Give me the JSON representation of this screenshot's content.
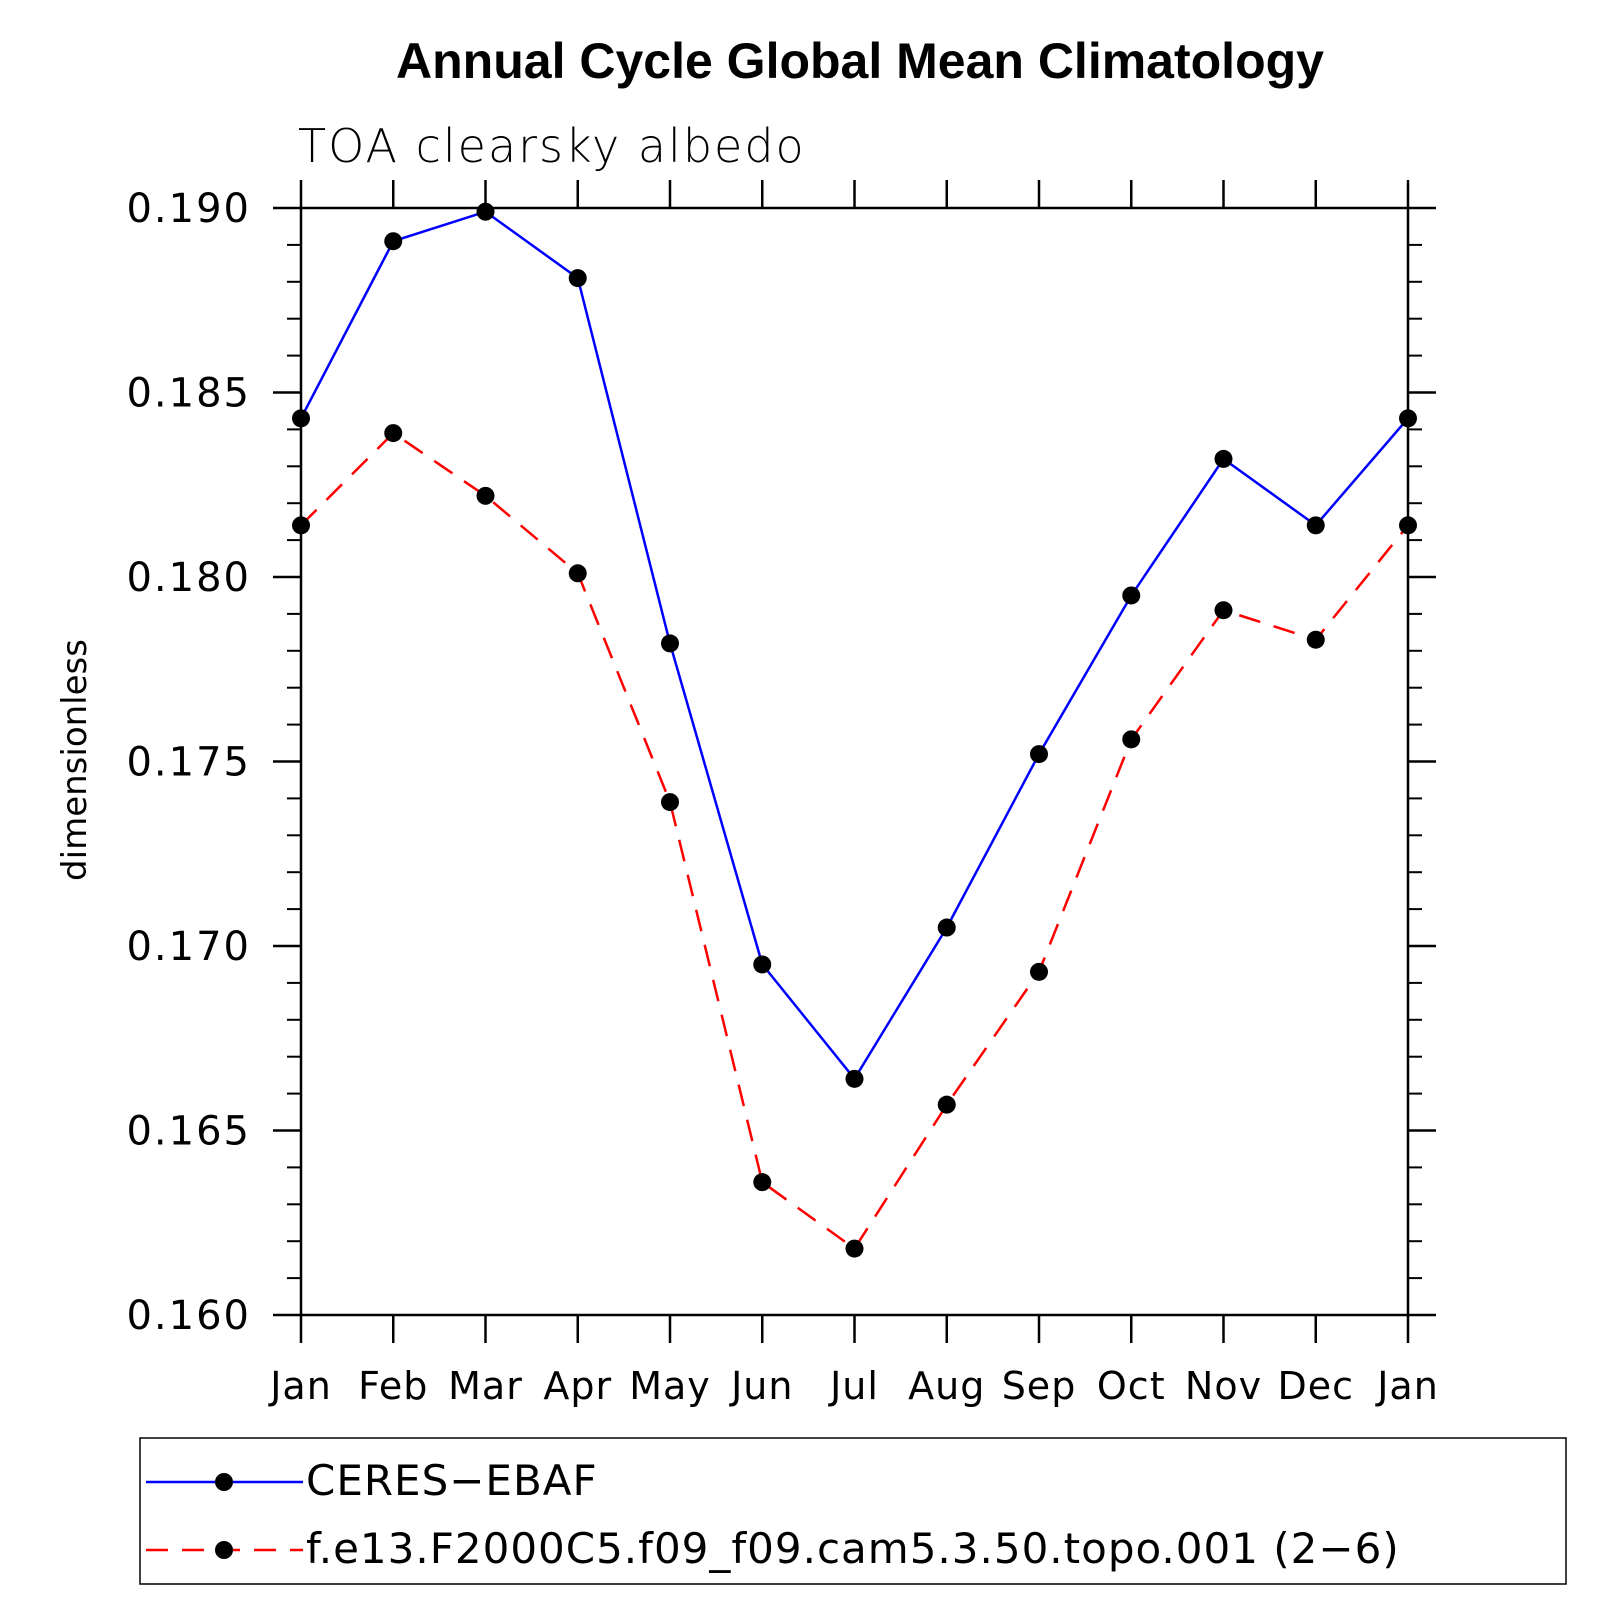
{
  "chart_data": {
    "type": "line",
    "title": "Annual Cycle Global Mean Climatology",
    "subtitle": "TOA clearsky albedo",
    "xlabel": "",
    "ylabel": "dimensionless",
    "categories": [
      "Jan",
      "Feb",
      "Mar",
      "Apr",
      "May",
      "Jun",
      "Jul",
      "Aug",
      "Sep",
      "Oct",
      "Nov",
      "Dec",
      "Jan"
    ],
    "ylim": [
      0.16,
      0.19
    ],
    "yticks": [
      "0.160",
      "0.165",
      "0.170",
      "0.175",
      "0.180",
      "0.185",
      "0.190"
    ],
    "grid": false,
    "legend_position": "bottom",
    "series": [
      {
        "name": "CERES−EBAF",
        "color": "#0000ff",
        "line_style": "solid",
        "marker": "filled-circle",
        "values": [
          0.1843,
          0.1891,
          0.1899,
          0.1881,
          0.1782,
          0.1695,
          0.1664,
          0.1705,
          0.1752,
          0.1795,
          0.1832,
          0.1814,
          0.1843
        ]
      },
      {
        "name": "f.e13.F2000C5.f09_f09.cam5.3.50.topo.001 (2−6)",
        "color": "#ff0000",
        "line_style": "dashed",
        "marker": "filled-circle",
        "values": [
          0.1814,
          0.1839,
          0.1822,
          0.1801,
          0.1739,
          0.1636,
          0.1618,
          0.1657,
          0.1693,
          0.1756,
          0.1791,
          0.1783,
          0.1814
        ]
      }
    ]
  }
}
